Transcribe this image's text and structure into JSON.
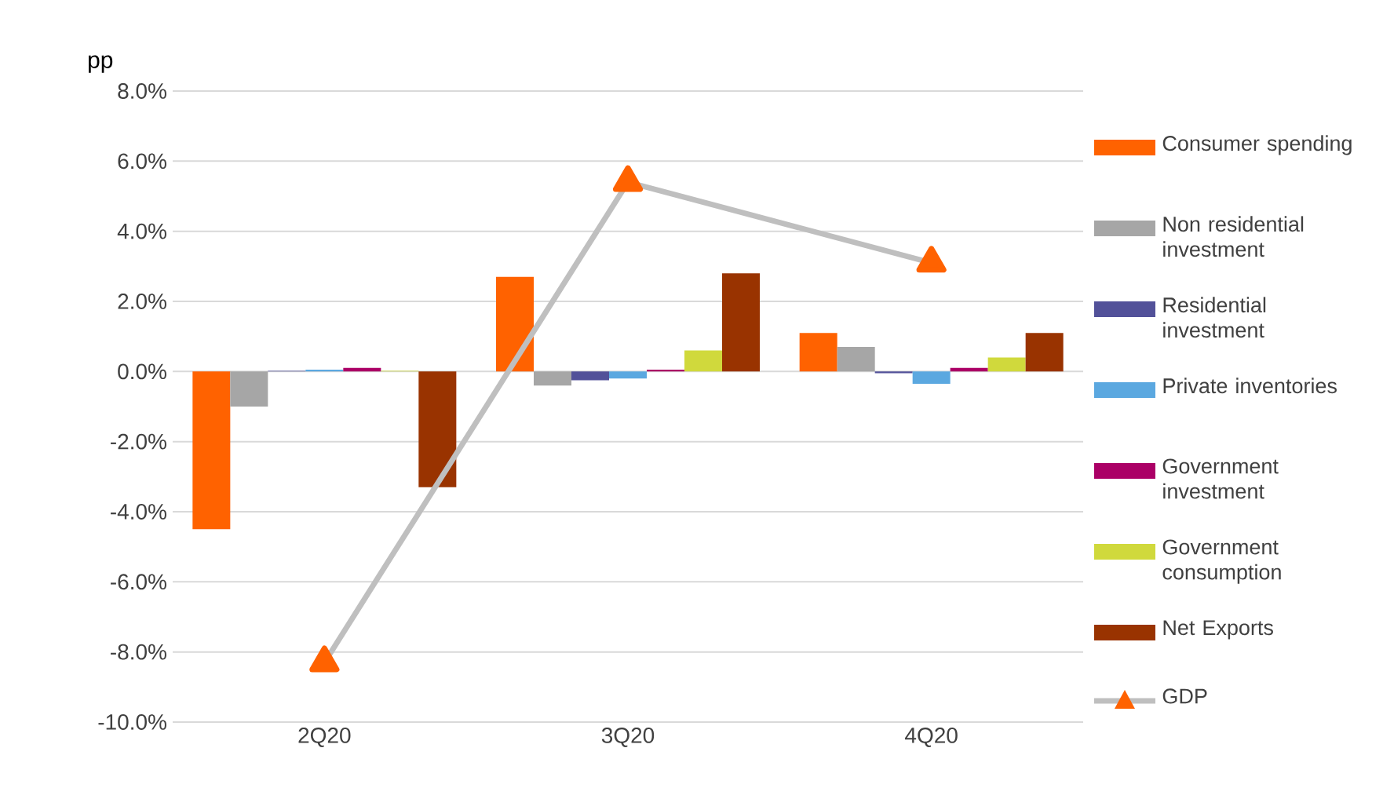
{
  "chart_data": {
    "type": "bar",
    "ylabel": "pp",
    "categories": [
      "2Q20",
      "3Q20",
      "4Q20"
    ],
    "series": [
      {
        "name": "Consumer spending",
        "color": "#ff6200",
        "values": [
          -4.5,
          2.7,
          1.1
        ]
      },
      {
        "name": "Non residential investment",
        "color": "#a6a6a6",
        "values": [
          -1.0,
          -0.4,
          0.7
        ]
      },
      {
        "name": "Residential investment",
        "color": "#525199",
        "values": [
          0.02,
          -0.25,
          -0.05
        ]
      },
      {
        "name": "Private inventories",
        "color": "#5ba8e0",
        "values": [
          0.05,
          -0.2,
          -0.35
        ]
      },
      {
        "name": "Government investment",
        "color": "#ab0066",
        "values": [
          0.1,
          0.05,
          0.1
        ]
      },
      {
        "name": "Government consumption",
        "color": "#d0d93c",
        "values": [
          0.02,
          0.6,
          0.4
        ]
      },
      {
        "name": "Net Exports",
        "color": "#993300",
        "values": [
          -3.3,
          2.8,
          1.1
        ]
      },
      {
        "name": "GDP",
        "type": "line",
        "color": "#bfbfbf",
        "values": [
          -8.3,
          5.4,
          3.1
        ]
      }
    ],
    "ylim": [
      -10,
      8
    ],
    "yticks": [
      {
        "value": -10,
        "label": "-10.0%"
      },
      {
        "value": -8,
        "label": "-8.0%"
      },
      {
        "value": -6,
        "label": "-6.0%"
      },
      {
        "value": -4,
        "label": "-4.0%"
      },
      {
        "value": -2,
        "label": "-2.0%"
      },
      {
        "value": 0,
        "label": "0.0%"
      },
      {
        "value": 2,
        "label": "2.0%"
      },
      {
        "value": 4,
        "label": "4.0%"
      },
      {
        "value": 6,
        "label": "6.0%"
      },
      {
        "value": 8,
        "label": "8.0%"
      }
    ],
    "grid": "y",
    "legend": "right",
    "marker": "triangle",
    "line_style": "solid"
  }
}
